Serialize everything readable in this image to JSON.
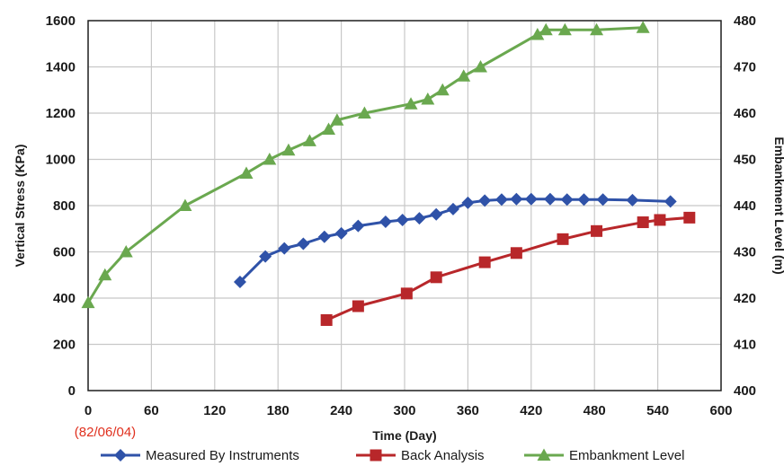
{
  "chart_data": {
    "type": "line",
    "xlabel": "Time (Day)",
    "ylabel": "Vertical Stress (KPa)",
    "y2label": "Embankment Level (m)",
    "x_note": "(82/06/04)",
    "xlim": [
      0,
      600
    ],
    "ylim": [
      0,
      1600
    ],
    "y2lim": [
      400,
      480
    ],
    "x_ticks": [
      0,
      60,
      120,
      180,
      240,
      300,
      360,
      420,
      480,
      540,
      600
    ],
    "y_ticks": [
      0,
      200,
      400,
      600,
      800,
      1000,
      1200,
      1400,
      1600
    ],
    "y2_ticks": [
      400,
      410,
      420,
      430,
      440,
      450,
      460,
      470,
      480
    ],
    "grid": true,
    "legend_position": "bottom",
    "series": [
      {
        "name": "Measured By Instruments",
        "axis": "left",
        "color": "#2f52a8",
        "marker": "diamond",
        "x": [
          144,
          168,
          186,
          204,
          224,
          240,
          256,
          282,
          298,
          314,
          330,
          346,
          360,
          376,
          392,
          406,
          420,
          438,
          454,
          470,
          488,
          516,
          552
        ],
        "y": [
          470,
          580,
          615,
          635,
          665,
          680,
          712,
          730,
          738,
          745,
          762,
          785,
          812,
          822,
          826,
          828,
          828,
          828,
          826,
          826,
          826,
          824,
          818
        ]
      },
      {
        "name": "Back Analysis",
        "axis": "left",
        "color": "#b8272a",
        "marker": "square",
        "x": [
          226,
          256,
          302,
          330,
          376,
          406,
          450,
          482,
          526,
          542,
          570
        ],
        "y": [
          305,
          365,
          420,
          490,
          555,
          595,
          655,
          690,
          728,
          738,
          748
        ]
      },
      {
        "name": "Embankment Level",
        "axis": "right",
        "color": "#6aa84f",
        "marker": "triangle",
        "x": [
          0,
          16,
          36,
          92,
          150,
          172,
          190,
          210,
          228,
          236,
          262,
          306,
          322,
          336,
          356,
          372,
          426,
          434,
          452,
          482,
          526
        ],
        "y": [
          419,
          425,
          430,
          440,
          447,
          450,
          452,
          454,
          456.5,
          458.5,
          460,
          462,
          463,
          465,
          468,
          470,
          477,
          478,
          478,
          478,
          478.5
        ]
      }
    ]
  }
}
